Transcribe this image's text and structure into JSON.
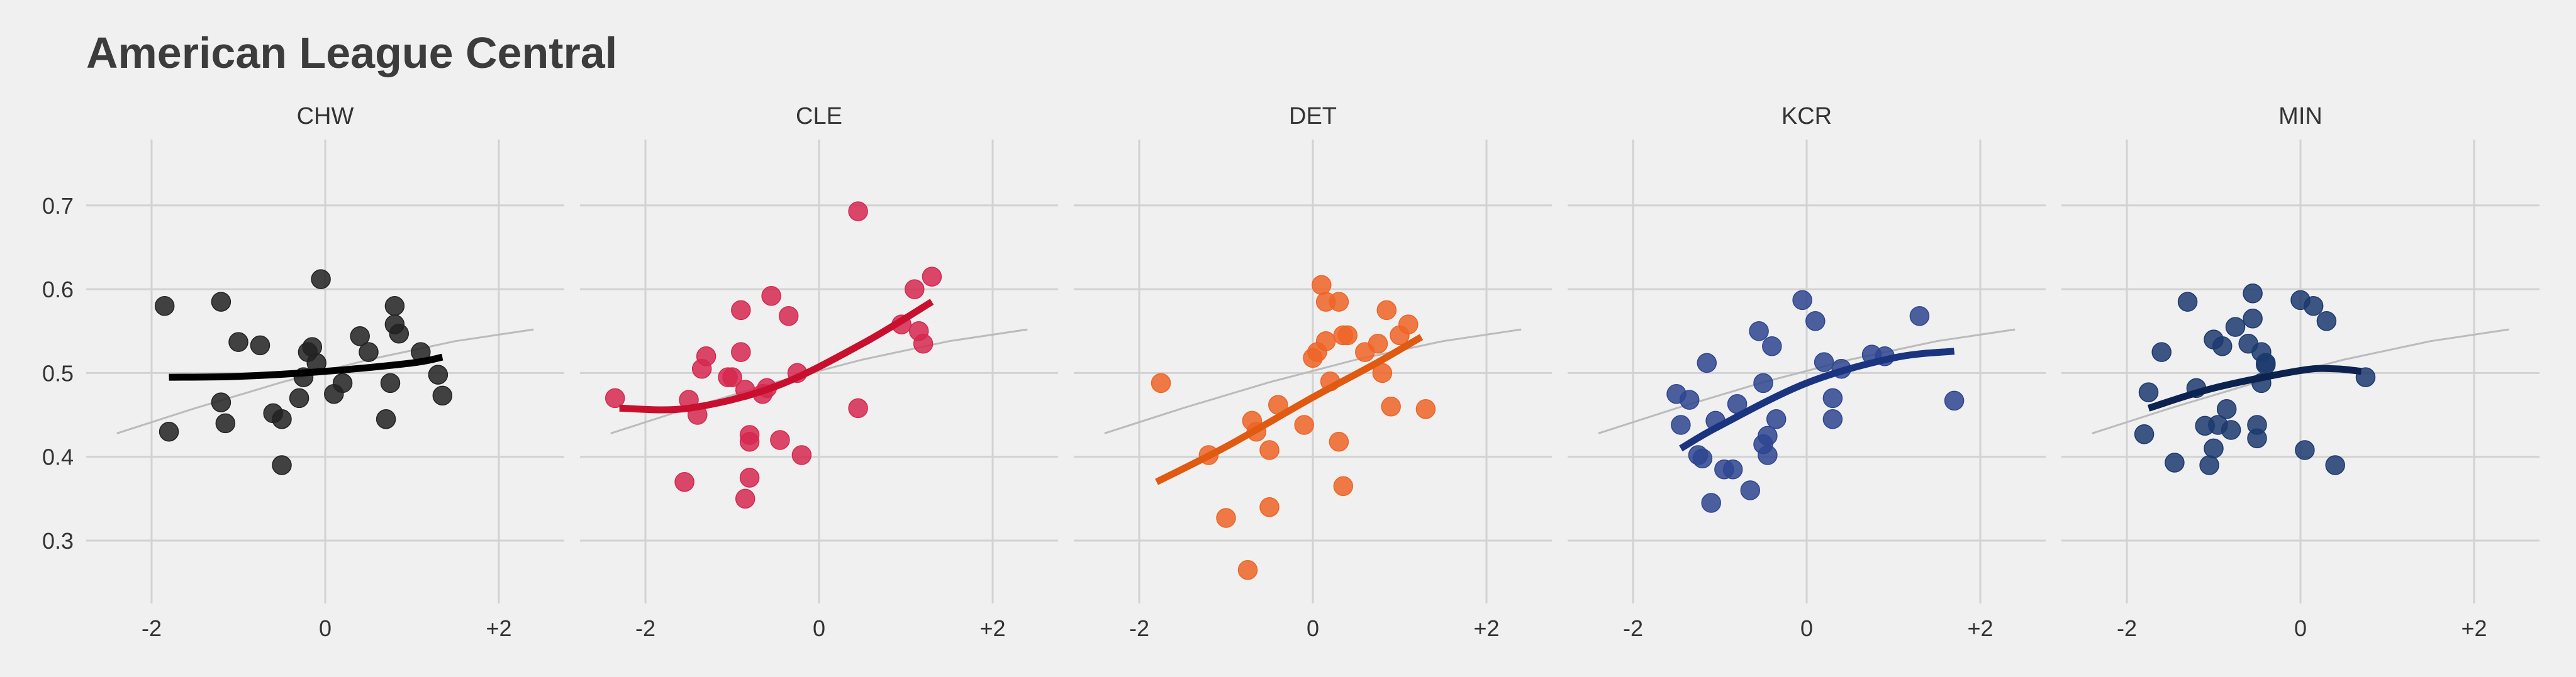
{
  "chart_data": {
    "type": "scatter",
    "title": "American League Central",
    "xlabel": "",
    "ylabel": "",
    "xlim": [
      -2.2,
      2.35
    ],
    "ylim": [
      0.23,
      0.77
    ],
    "x_ticks": [
      {
        "value": -2,
        "label": "-2"
      },
      {
        "value": 0,
        "label": "0"
      },
      {
        "value": 2,
        "label": "+2"
      }
    ],
    "y_ticks": [
      {
        "value": 0.3,
        "label": "0.3"
      },
      {
        "value": 0.4,
        "label": "0.4"
      },
      {
        "value": 0.5,
        "label": "0.5"
      },
      {
        "value": 0.6,
        "label": "0.6"
      },
      {
        "value": 0.7,
        "label": "0.7"
      }
    ],
    "grid": true,
    "reference_line": {
      "color": "#bbbbbb",
      "points": [
        [
          -2.4,
          0.428
        ],
        [
          -1.5,
          0.458
        ],
        [
          -0.5,
          0.489
        ],
        [
          0.5,
          0.516
        ],
        [
          1.5,
          0.538
        ],
        [
          2.4,
          0.552
        ]
      ]
    },
    "facets": [
      {
        "name": "CHW",
        "color": "#222222",
        "fit_color": "#000000",
        "fit": [
          [
            -1.8,
            0.495
          ],
          [
            -1.0,
            0.496
          ],
          [
            0.0,
            0.502
          ],
          [
            1.0,
            0.512
          ],
          [
            1.35,
            0.519
          ]
        ],
        "points": [
          [
            -1.85,
            0.58
          ],
          [
            -1.8,
            0.43
          ],
          [
            -1.2,
            0.585
          ],
          [
            -1.2,
            0.465
          ],
          [
            -1.15,
            0.44
          ],
          [
            -1.0,
            0.537
          ],
          [
            -0.75,
            0.533
          ],
          [
            -0.6,
            0.452
          ],
          [
            -0.5,
            0.445
          ],
          [
            -0.5,
            0.39
          ],
          [
            -0.3,
            0.47
          ],
          [
            -0.25,
            0.495
          ],
          [
            -0.2,
            0.525
          ],
          [
            -0.15,
            0.531
          ],
          [
            -0.1,
            0.512
          ],
          [
            -0.05,
            0.612
          ],
          [
            0.1,
            0.475
          ],
          [
            0.2,
            0.488
          ],
          [
            0.4,
            0.544
          ],
          [
            0.5,
            0.525
          ],
          [
            0.7,
            0.445
          ],
          [
            0.75,
            0.488
          ],
          [
            0.8,
            0.558
          ],
          [
            0.8,
            0.58
          ],
          [
            0.85,
            0.547
          ],
          [
            1.1,
            0.525
          ],
          [
            1.3,
            0.498
          ],
          [
            1.35,
            0.473
          ]
        ]
      },
      {
        "name": "CLE",
        "color": "#d6284f",
        "fit_color": "#c8102e",
        "fit": [
          [
            -2.3,
            0.458
          ],
          [
            -1.5,
            0.458
          ],
          [
            -0.5,
            0.484
          ],
          [
            0.5,
            0.535
          ],
          [
            1.3,
            0.585
          ]
        ],
        "points": [
          [
            -2.35,
            0.47
          ],
          [
            -1.55,
            0.37
          ],
          [
            -1.5,
            0.468
          ],
          [
            -1.4,
            0.45
          ],
          [
            -1.35,
            0.505
          ],
          [
            -1.3,
            0.52
          ],
          [
            -1.05,
            0.495
          ],
          [
            -1.0,
            0.495
          ],
          [
            -0.9,
            0.525
          ],
          [
            -0.9,
            0.575
          ],
          [
            -0.85,
            0.48
          ],
          [
            -0.85,
            0.35
          ],
          [
            -0.8,
            0.375
          ],
          [
            -0.8,
            0.418
          ],
          [
            -0.8,
            0.426
          ],
          [
            -0.65,
            0.475
          ],
          [
            -0.6,
            0.482
          ],
          [
            -0.55,
            0.592
          ],
          [
            -0.45,
            0.42
          ],
          [
            -0.35,
            0.568
          ],
          [
            -0.25,
            0.5
          ],
          [
            -0.2,
            0.402
          ],
          [
            0.45,
            0.693
          ],
          [
            0.45,
            0.458
          ],
          [
            0.95,
            0.558
          ],
          [
            1.1,
            0.6
          ],
          [
            1.15,
            0.55
          ],
          [
            1.2,
            0.535
          ],
          [
            1.3,
            0.615
          ]
        ]
      },
      {
        "name": "DET",
        "color": "#ef6426",
        "fit_color": "#e05a12",
        "fit": [
          [
            -1.8,
            0.37
          ],
          [
            -1.0,
            0.412
          ],
          [
            0.0,
            0.471
          ],
          [
            0.7,
            0.51
          ],
          [
            1.25,
            0.543
          ]
        ],
        "points": [
          [
            -1.75,
            0.488
          ],
          [
            -1.2,
            0.402
          ],
          [
            -1.0,
            0.327
          ],
          [
            -0.75,
            0.265
          ],
          [
            -0.7,
            0.443
          ],
          [
            -0.65,
            0.43
          ],
          [
            -0.5,
            0.34
          ],
          [
            -0.5,
            0.408
          ],
          [
            -0.4,
            0.462
          ],
          [
            -0.1,
            0.438
          ],
          [
            0.0,
            0.518
          ],
          [
            0.05,
            0.525
          ],
          [
            0.1,
            0.605
          ],
          [
            0.15,
            0.538
          ],
          [
            0.15,
            0.585
          ],
          [
            0.2,
            0.49
          ],
          [
            0.3,
            0.585
          ],
          [
            0.3,
            0.418
          ],
          [
            0.35,
            0.545
          ],
          [
            0.35,
            0.365
          ],
          [
            0.4,
            0.545
          ],
          [
            0.6,
            0.525
          ],
          [
            0.75,
            0.535
          ],
          [
            0.8,
            0.5
          ],
          [
            0.85,
            0.575
          ],
          [
            0.9,
            0.46
          ],
          [
            1.0,
            0.545
          ],
          [
            1.1,
            0.558
          ],
          [
            1.3,
            0.457
          ]
        ]
      },
      {
        "name": "KCR",
        "color": "#2e4591",
        "fit_color": "#1a3480",
        "fit": [
          [
            -1.45,
            0.41
          ],
          [
            -1.0,
            0.437
          ],
          [
            0.0,
            0.488
          ],
          [
            1.0,
            0.518
          ],
          [
            1.7,
            0.526
          ]
        ],
        "points": [
          [
            -1.5,
            0.475
          ],
          [
            -1.45,
            0.438
          ],
          [
            -1.35,
            0.468
          ],
          [
            -1.25,
            0.402
          ],
          [
            -1.2,
            0.398
          ],
          [
            -1.15,
            0.512
          ],
          [
            -1.1,
            0.345
          ],
          [
            -1.05,
            0.443
          ],
          [
            -0.95,
            0.385
          ],
          [
            -0.85,
            0.385
          ],
          [
            -0.8,
            0.463
          ],
          [
            -0.65,
            0.36
          ],
          [
            -0.55,
            0.55
          ],
          [
            -0.5,
            0.488
          ],
          [
            -0.5,
            0.415
          ],
          [
            -0.45,
            0.402
          ],
          [
            -0.45,
            0.425
          ],
          [
            -0.4,
            0.532
          ],
          [
            -0.35,
            0.445
          ],
          [
            -0.05,
            0.587
          ],
          [
            0.1,
            0.562
          ],
          [
            0.2,
            0.513
          ],
          [
            0.3,
            0.445
          ],
          [
            0.3,
            0.47
          ],
          [
            0.4,
            0.505
          ],
          [
            0.75,
            0.522
          ],
          [
            0.9,
            0.52
          ],
          [
            1.3,
            0.568
          ],
          [
            1.7,
            0.467
          ]
        ]
      },
      {
        "name": "MIN",
        "color": "#1c3a6e",
        "fit_color": "#0c2350",
        "fit": [
          [
            -1.75,
            0.458
          ],
          [
            -1.0,
            0.482
          ],
          [
            0.0,
            0.503
          ],
          [
            0.4,
            0.505
          ],
          [
            0.7,
            0.502
          ]
        ],
        "points": [
          [
            -1.8,
            0.427
          ],
          [
            -1.75,
            0.477
          ],
          [
            -1.6,
            0.525
          ],
          [
            -1.45,
            0.393
          ],
          [
            -1.3,
            0.585
          ],
          [
            -1.2,
            0.482
          ],
          [
            -1.1,
            0.437
          ],
          [
            -1.05,
            0.39
          ],
          [
            -1.0,
            0.41
          ],
          [
            -1.0,
            0.54
          ],
          [
            -0.95,
            0.438
          ],
          [
            -0.9,
            0.532
          ],
          [
            -0.85,
            0.457
          ],
          [
            -0.8,
            0.432
          ],
          [
            -0.75,
            0.555
          ],
          [
            -0.6,
            0.535
          ],
          [
            -0.55,
            0.565
          ],
          [
            -0.55,
            0.595
          ],
          [
            -0.5,
            0.438
          ],
          [
            -0.5,
            0.422
          ],
          [
            -0.45,
            0.525
          ],
          [
            -0.45,
            0.488
          ],
          [
            -0.4,
            0.51
          ],
          [
            -0.4,
            0.512
          ],
          [
            0.0,
            0.587
          ],
          [
            0.05,
            0.408
          ],
          [
            0.15,
            0.58
          ],
          [
            0.3,
            0.562
          ],
          [
            0.4,
            0.39
          ],
          [
            0.75,
            0.495
          ]
        ]
      }
    ]
  }
}
